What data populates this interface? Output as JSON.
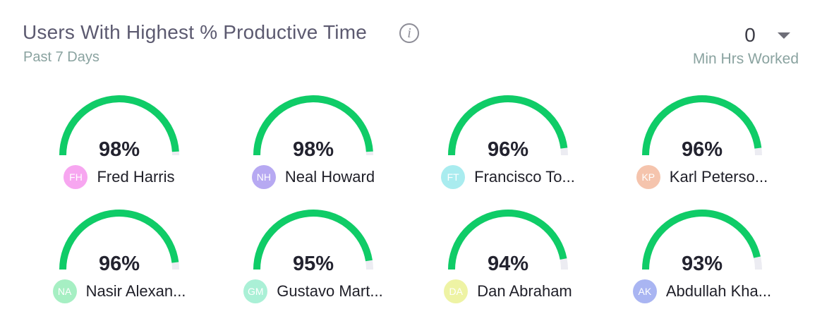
{
  "header": {
    "title": "Users With Highest % Productive Time",
    "subtitle": "Past 7 Days",
    "info_icon": "info-icon",
    "min_hours": {
      "value": "0",
      "label": "Min Hrs Worked"
    }
  },
  "colors": {
    "gauge_fill": "#0fcc67",
    "gauge_track": "#ececf2"
  },
  "users": [
    {
      "initials": "FH",
      "name": "Fred Harris",
      "percent_text": "98%",
      "percent": 98,
      "avatar_color": "#f7a6f0"
    },
    {
      "initials": "NH",
      "name": "Neal Howard",
      "percent_text": "98%",
      "percent": 98,
      "avatar_color": "#b7a9f2"
    },
    {
      "initials": "FT",
      "name": "Francisco To...",
      "percent_text": "96%",
      "percent": 96,
      "avatar_color": "#a9ecef"
    },
    {
      "initials": "KP",
      "name": "Karl Peterso...",
      "percent_text": "96%",
      "percent": 96,
      "avatar_color": "#f5c4ad"
    },
    {
      "initials": "NA",
      "name": "Nasir Alexan...",
      "percent_text": "96%",
      "percent": 96,
      "avatar_color": "#a6efc3"
    },
    {
      "initials": "GM",
      "name": "Gustavo Mart...",
      "percent_text": "95%",
      "percent": 95,
      "avatar_color": "#aaf0d6"
    },
    {
      "initials": "DA",
      "name": "Dan Abraham",
      "percent_text": "94%",
      "percent": 94,
      "avatar_color": "#eef3a4"
    },
    {
      "initials": "AK",
      "name": "Abdullah Kha...",
      "percent_text": "93%",
      "percent": 93,
      "avatar_color": "#a9b5f2"
    }
  ]
}
